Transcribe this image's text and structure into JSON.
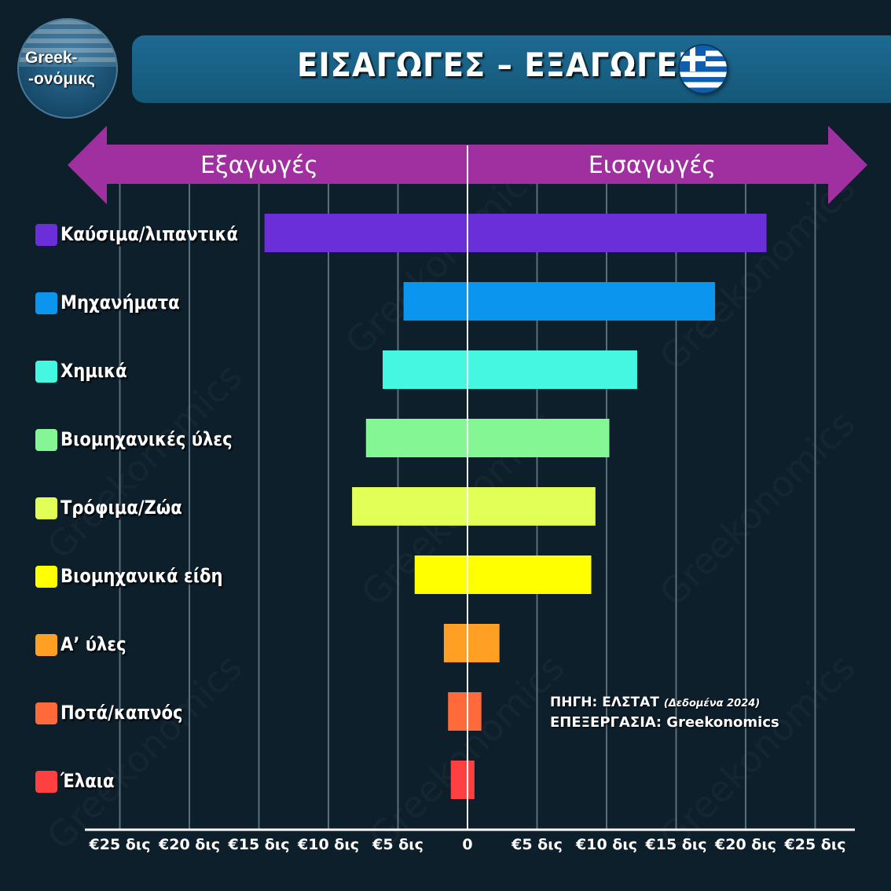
{
  "logo": {
    "line1": "Greek-",
    "line2": "-ονόμικς"
  },
  "header": {
    "title": "ΕΙΣΑΓΩΓΕΣ – ΕΞΑΓΩΓΕΣ",
    "flag_icon": "greek-flag-icon"
  },
  "arrows": {
    "left_label": "Εξαγωγές",
    "right_label": "Εισαγωγές",
    "color": "#a030a0"
  },
  "source": {
    "line1_main": "ΠΗΓΗ: ΕΛΣΤΑΤ",
    "line1_note": "(Δεδομένα 2024)",
    "line2": "ΕΠΕΞΕΡΓΑΣΙΑ: Greekonomics"
  },
  "watermark_text": "Greekonomics",
  "chart_data": {
    "type": "bar",
    "orientation": "horizontal-diverging",
    "categories": [
      "Καύσιμα/λιπαντικά",
      "Μηχανήματα",
      "Χημικά",
      "Βιομηχανικές ύλες",
      "Τρόφιμα/Ζώα",
      "Βιομηχανικά είδη",
      "Α’ ύλες",
      "Ποτά/καπνός",
      "Έλαια"
    ],
    "colors": [
      "#6a2fd8",
      "#0a96ee",
      "#45f7e0",
      "#84f794",
      "#e2ff58",
      "#ffff00",
      "#ff9f24",
      "#ff6a3a",
      "#ff4040"
    ],
    "series": [
      {
        "values": [
          14.6,
          4.6,
          6.1,
          7.3,
          8.3,
          3.8,
          1.7,
          1.4,
          1.2
        ]
      },
      {
        "values": [
          21.5,
          17.8,
          12.2,
          10.2,
          9.2,
          8.9,
          2.3,
          1.0,
          0.5
        ]
      }
    ],
    "xlim": [
      -25,
      25
    ],
    "grid": true,
    "ticks_left": [
      "€25 δις",
      "€20 δις",
      "€15 δις",
      "€10 δις",
      "€5 δις"
    ],
    "ticks_left_values": [
      -25,
      -20,
      -15,
      -10,
      -5
    ],
    "tick_zero": "0",
    "ticks_right": [
      "€5 δις",
      "€10 δις",
      "€15 δις",
      "€20 δις",
      "€25 δις"
    ],
    "ticks_right_values": [
      5,
      10,
      15,
      20,
      25
    ]
  }
}
